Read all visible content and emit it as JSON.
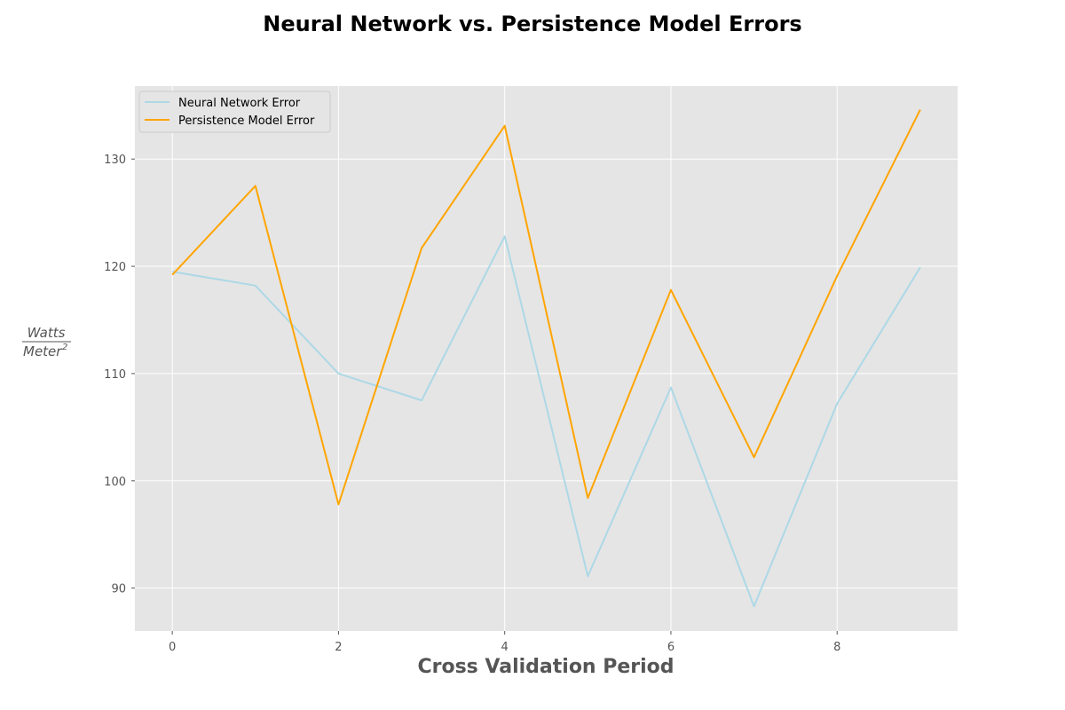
{
  "chart_data": {
    "type": "line",
    "title": "Neural Network vs. Persistence Model Errors",
    "xlabel": "Cross Validation Period",
    "ylabel": {
      "numerator": "Watts",
      "denominator": "Meter",
      "exponent": "2"
    },
    "x": [
      0,
      1,
      2,
      3,
      4,
      5,
      6,
      7,
      8,
      9
    ],
    "xlim": [
      -0.45,
      9.45
    ],
    "ylim": [
      86,
      136.8
    ],
    "xticks": [
      0,
      2,
      4,
      6,
      8
    ],
    "xtick_labels": [
      "0",
      "2",
      "4",
      "6",
      "8"
    ],
    "yticks": [
      90,
      100,
      110,
      120,
      130
    ],
    "ytick_labels": [
      "90",
      "100",
      "110",
      "120",
      "130"
    ],
    "grid": true,
    "legend_position": "upper-left",
    "series": [
      {
        "name": "Neural Network Error",
        "color": "#add8e6",
        "values": [
          119.5,
          118.2,
          110.0,
          107.5,
          122.8,
          91.1,
          108.7,
          88.3,
          107.2,
          119.9
        ]
      },
      {
        "name": "Persistence Model Error",
        "color": "#ffa500",
        "values": [
          119.2,
          127.5,
          97.8,
          121.7,
          133.1,
          98.4,
          117.8,
          102.2,
          119.1,
          134.6
        ]
      }
    ],
    "style": {
      "plot_background": "#e5e5e5",
      "grid_color": "#ffffff"
    }
  }
}
